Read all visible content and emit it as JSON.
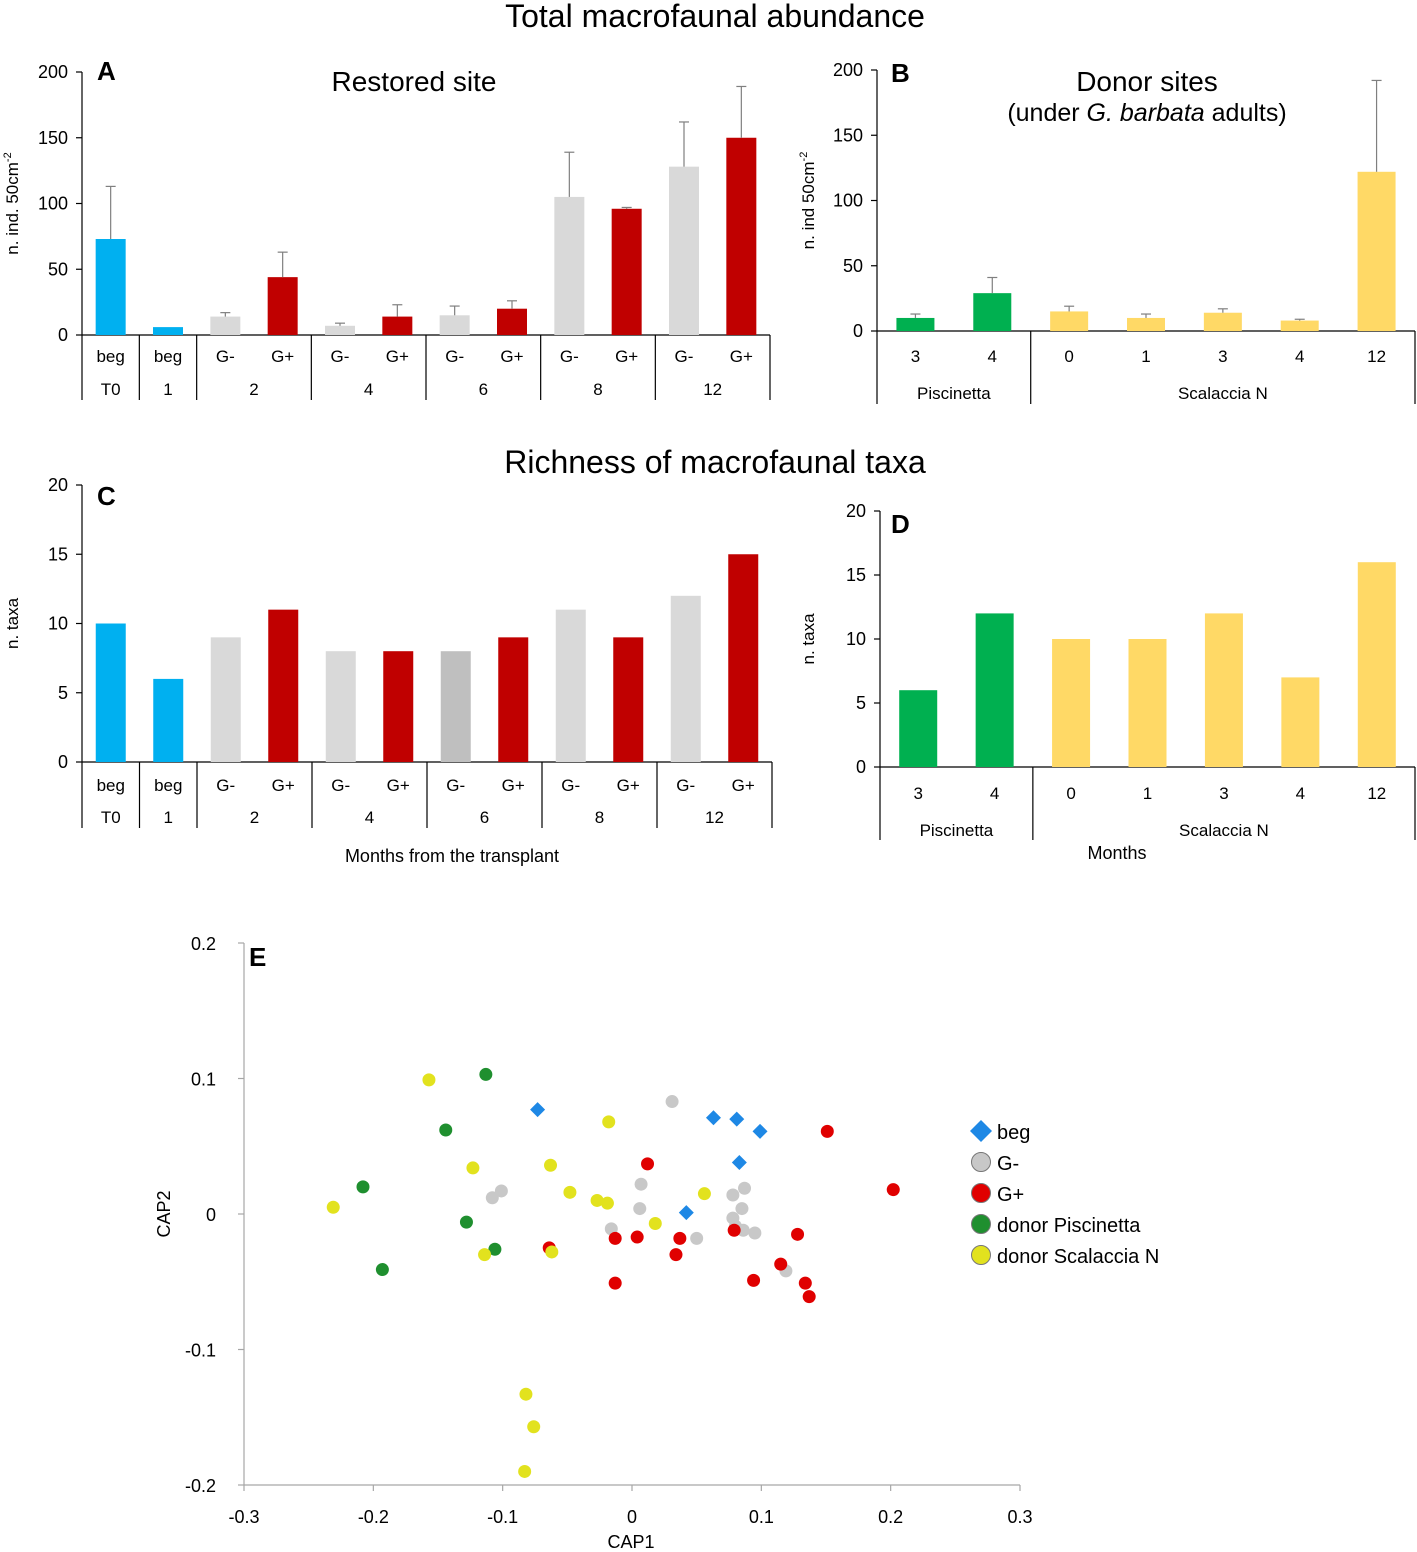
{
  "section_titles": {
    "abundance": "Total macrofaunal abundance",
    "richness": "Richness of macrofaunal taxa"
  },
  "colors": {
    "beg": "#00B0F0",
    "g_minus": "#D9D9D9",
    "g_minus_dark": "#BFBFBF",
    "g_plus": "#C00000",
    "piscinetta": "#00B050",
    "scalaccia": "#FFD966",
    "errorbar": "#7F7F7F",
    "axis": "#000000",
    "scatter_beg": "#1E88E5",
    "scatter_gminus": "#C8C8C8",
    "scatter_gplus": "#E00000",
    "scatter_piscinetta": "#1F8F2F",
    "scatter_scalaccia": "#E2E21E"
  },
  "chart_data": [
    {
      "id": "A",
      "panel_letter": "A",
      "type": "bar",
      "title": "Restored site",
      "ylabel": "n. ind. 50cm",
      "ylabel_sup": "-2",
      "ylim": [
        0,
        200
      ],
      "yticks": [
        0,
        50,
        100,
        150,
        200
      ],
      "bars": [
        {
          "label": "beg",
          "value": 73,
          "error": 40,
          "color": "beg"
        },
        {
          "label": "beg",
          "value": 6,
          "error": 0,
          "color": "beg"
        },
        {
          "label": "G-",
          "value": 14,
          "error": 3,
          "color": "g_minus"
        },
        {
          "label": "G+",
          "value": 44,
          "error": 19,
          "color": "g_plus"
        },
        {
          "label": "G-",
          "value": 7,
          "error": 2,
          "color": "g_minus"
        },
        {
          "label": "G+",
          "value": 14,
          "error": 9,
          "color": "g_plus"
        },
        {
          "label": "G-",
          "value": 15,
          "error": 7,
          "color": "g_minus"
        },
        {
          "label": "G+",
          "value": 20,
          "error": 6,
          "color": "g_plus"
        },
        {
          "label": "G-",
          "value": 105,
          "error": 34,
          "color": "g_minus"
        },
        {
          "label": "G+",
          "value": 96,
          "error": 1,
          "color": "g_plus"
        },
        {
          "label": "G-",
          "value": 128,
          "error": 34,
          "color": "g_minus"
        },
        {
          "label": "G+",
          "value": 150,
          "error": 39,
          "color": "g_plus"
        }
      ],
      "groups": [
        {
          "label": "T0",
          "start": 0,
          "end": 0
        },
        {
          "label": "1",
          "start": 1,
          "end": 1
        },
        {
          "label": "2",
          "start": 2,
          "end": 3
        },
        {
          "label": "4",
          "start": 4,
          "end": 5
        },
        {
          "label": "6",
          "start": 6,
          "end": 7
        },
        {
          "label": "8",
          "start": 8,
          "end": 9
        },
        {
          "label": "12",
          "start": 10,
          "end": 11
        }
      ],
      "xlabel": ""
    },
    {
      "id": "B",
      "panel_letter": "B",
      "type": "bar",
      "title": "Donor sites",
      "subtitle_pre": "(under ",
      "subtitle_italic": "G. barbata",
      "subtitle_post": " adults)",
      "ylabel": "n. ind 50cm",
      "ylabel_sup": "-2",
      "ylim": [
        0,
        200
      ],
      "yticks": [
        0,
        50,
        100,
        150,
        200
      ],
      "bars": [
        {
          "label": "3",
          "value": 10,
          "error": 3,
          "color": "piscinetta"
        },
        {
          "label": "4",
          "value": 29,
          "error": 12,
          "color": "piscinetta"
        },
        {
          "label": "0",
          "value": 15,
          "error": 4,
          "color": "scalaccia"
        },
        {
          "label": "1",
          "value": 10,
          "error": 3,
          "color": "scalaccia"
        },
        {
          "label": "3",
          "value": 14,
          "error": 3,
          "color": "scalaccia"
        },
        {
          "label": "4",
          "value": 8,
          "error": 1,
          "color": "scalaccia"
        },
        {
          "label": "12",
          "value": 122,
          "error": 70,
          "color": "scalaccia"
        }
      ],
      "groups": [
        {
          "label": "Piscinetta",
          "start": 0,
          "end": 1
        },
        {
          "label": "Scalaccia N",
          "start": 2,
          "end": 6
        }
      ],
      "xlabel": ""
    },
    {
      "id": "C",
      "panel_letter": "C",
      "type": "bar",
      "title": "",
      "ylabel": "n. taxa",
      "ylim": [
        0,
        20
      ],
      "yticks": [
        0,
        5,
        10,
        15,
        20
      ],
      "bars": [
        {
          "label": "beg",
          "value": 10,
          "color": "beg"
        },
        {
          "label": "beg",
          "value": 6,
          "color": "beg"
        },
        {
          "label": "G-",
          "value": 9,
          "color": "g_minus"
        },
        {
          "label": "G+",
          "value": 11,
          "color": "g_plus"
        },
        {
          "label": "G-",
          "value": 8,
          "color": "g_minus"
        },
        {
          "label": "G+",
          "value": 8,
          "color": "g_plus"
        },
        {
          "label": "G-",
          "value": 8,
          "color": "g_minus_dark"
        },
        {
          "label": "G+",
          "value": 9,
          "color": "g_plus"
        },
        {
          "label": "G-",
          "value": 11,
          "color": "g_minus"
        },
        {
          "label": "G+",
          "value": 9,
          "color": "g_plus"
        },
        {
          "label": "G-",
          "value": 12,
          "color": "g_minus"
        },
        {
          "label": "G+",
          "value": 15,
          "color": "g_plus"
        }
      ],
      "groups": [
        {
          "label": "T0",
          "start": 0,
          "end": 0
        },
        {
          "label": "1",
          "start": 1,
          "end": 1
        },
        {
          "label": "2",
          "start": 2,
          "end": 3
        },
        {
          "label": "4",
          "start": 4,
          "end": 5
        },
        {
          "label": "6",
          "start": 6,
          "end": 7
        },
        {
          "label": "8",
          "start": 8,
          "end": 9
        },
        {
          "label": "12",
          "start": 10,
          "end": 11
        }
      ],
      "xlabel": "Months from the transplant"
    },
    {
      "id": "D",
      "panel_letter": "D",
      "type": "bar",
      "title": "",
      "ylabel": "n. taxa",
      "ylim": [
        0,
        20
      ],
      "yticks": [
        0,
        5,
        10,
        15,
        20
      ],
      "bars": [
        {
          "label": "3",
          "value": 6,
          "color": "piscinetta"
        },
        {
          "label": "4",
          "value": 12,
          "color": "piscinetta"
        },
        {
          "label": "0",
          "value": 10,
          "color": "scalaccia"
        },
        {
          "label": "1",
          "value": 10,
          "color": "scalaccia"
        },
        {
          "label": "3",
          "value": 12,
          "color": "scalaccia"
        },
        {
          "label": "4",
          "value": 7,
          "color": "scalaccia"
        },
        {
          "label": "12",
          "value": 16,
          "color": "scalaccia"
        }
      ],
      "groups": [
        {
          "label": "Piscinetta",
          "start": 0,
          "end": 1
        },
        {
          "label": "Scalaccia N",
          "start": 2,
          "end": 6
        }
      ],
      "xlabel": "Months"
    },
    {
      "id": "E",
      "panel_letter": "E",
      "type": "scatter",
      "xlabel": "CAP1",
      "ylabel": "CAP2",
      "xlim": [
        -0.3,
        0.3
      ],
      "ylim": [
        -0.2,
        0.2
      ],
      "xticks": [
        "-0.3",
        "-0.2",
        "-0.1",
        "0",
        "0.1",
        "0.2",
        "0.3"
      ],
      "yticks": [
        "-0.2",
        "-0.1",
        "0",
        "0.1",
        "0.2"
      ],
      "series": [
        {
          "name": "beg",
          "marker": "diamond",
          "color": "scatter_beg",
          "points": [
            [
              -0.073,
              0.077
            ],
            [
              0.063,
              0.071
            ],
            [
              0.081,
              0.07
            ],
            [
              0.099,
              0.061
            ],
            [
              0.083,
              0.038
            ],
            [
              0.042,
              0.001
            ]
          ]
        },
        {
          "name": "G-",
          "marker": "circle",
          "color": "scatter_gminus",
          "points": [
            [
              0.031,
              0.083
            ],
            [
              -0.108,
              0.012
            ],
            [
              -0.101,
              0.017
            ],
            [
              0.007,
              0.022
            ],
            [
              0.006,
              0.004
            ],
            [
              -0.016,
              -0.011
            ],
            [
              0.05,
              -0.018
            ],
            [
              0.078,
              0.014
            ],
            [
              0.087,
              0.019
            ],
            [
              0.085,
              0.004
            ],
            [
              0.078,
              -0.003
            ],
            [
              0.08,
              -0.009
            ],
            [
              0.086,
              -0.012
            ],
            [
              0.095,
              -0.014
            ],
            [
              0.119,
              -0.042
            ]
          ]
        },
        {
          "name": "G+",
          "marker": "circle",
          "color": "scatter_gplus",
          "points": [
            [
              0.151,
              0.061
            ],
            [
              0.202,
              0.018
            ],
            [
              0.012,
              0.037
            ],
            [
              -0.064,
              -0.025
            ],
            [
              -0.013,
              -0.018
            ],
            [
              0.004,
              -0.017
            ],
            [
              0.037,
              -0.018
            ],
            [
              0.034,
              -0.03
            ],
            [
              0.079,
              -0.012
            ],
            [
              0.128,
              -0.015
            ],
            [
              -0.013,
              -0.051
            ],
            [
              0.094,
              -0.049
            ],
            [
              0.115,
              -0.037
            ],
            [
              0.134,
              -0.051
            ],
            [
              0.137,
              -0.061
            ]
          ]
        },
        {
          "name": "donor Piscinetta",
          "marker": "circle",
          "color": "scatter_piscinetta",
          "points": [
            [
              -0.113,
              0.103
            ],
            [
              -0.144,
              0.062
            ],
            [
              -0.208,
              0.02
            ],
            [
              -0.128,
              -0.006
            ],
            [
              -0.106,
              -0.026
            ],
            [
              -0.193,
              -0.041
            ]
          ]
        },
        {
          "name": "donor Scalaccia N",
          "marker": "circle",
          "color": "scatter_scalaccia",
          "points": [
            [
              -0.157,
              0.099
            ],
            [
              -0.018,
              0.068
            ],
            [
              -0.123,
              0.034
            ],
            [
              -0.063,
              0.036
            ],
            [
              -0.048,
              0.016
            ],
            [
              -0.027,
              0.01
            ],
            [
              -0.019,
              0.008
            ],
            [
              0.056,
              0.015
            ],
            [
              0.018,
              -0.007
            ],
            [
              -0.231,
              0.005
            ],
            [
              -0.114,
              -0.03
            ],
            [
              -0.062,
              -0.028
            ],
            [
              -0.082,
              -0.133
            ],
            [
              -0.076,
              -0.157
            ],
            [
              -0.083,
              -0.19
            ]
          ]
        }
      ]
    }
  ]
}
